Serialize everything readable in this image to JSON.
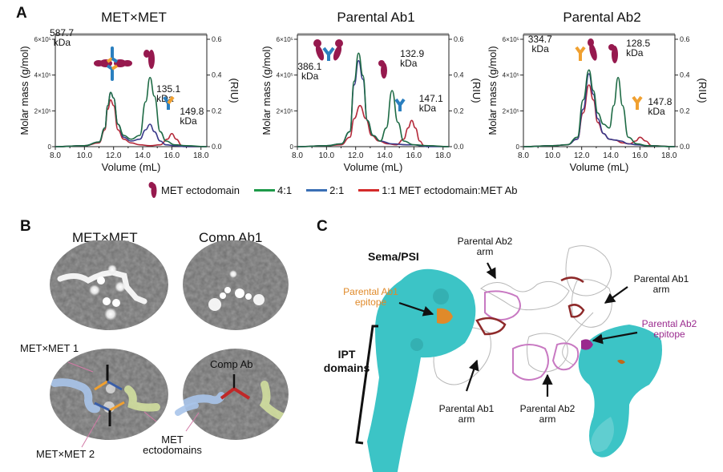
{
  "figure": {
    "panel_a": {
      "letter": "A"
    },
    "panel_b": {
      "letter": "B",
      "titles": [
        "MET×MET",
        "Comp Ab1"
      ],
      "annotations": {
        "metxmet1": "MET×MET 1",
        "metxmet2": "MET×MET 2",
        "met_ectodomains_line1": "MET",
        "met_ectodomains_line2": "ectodomains",
        "comp_ab": "Comp Ab"
      }
    },
    "panel_c": {
      "letter": "C",
      "sema_psi": "Sema/PSI",
      "ipt_line1": "IPT",
      "ipt_line2": "domains",
      "ab1_epitope_line1": "Parental Ab1",
      "ab1_epitope_line2": "epitope",
      "ab2_epitope_line1": "Parental Ab2",
      "ab2_epitope_line2": "epitope",
      "ab2_arm_top_line1": "Parental Ab2",
      "ab2_arm_top_line2": "arm",
      "ab1_arm_right_line1": "Parental Ab1",
      "ab1_arm_right_line2": "arm",
      "ab1_arm_bottom_line1": "Parental Ab1",
      "ab1_arm_bottom_line2": "arm",
      "ab2_arm_bottom_line1": "Parental Ab2",
      "ab2_arm_bottom_line2": "arm",
      "colors": {
        "met_surface": "#3cc4c6",
        "ab1_epitope": "#e08a2a",
        "ab2_epitope": "#9a2a8e",
        "ab1_arm": "#8e2a2a",
        "ab2_arm": "#c879c2"
      }
    },
    "legend": {
      "met_label": "MET ectodomain",
      "items": [
        {
          "label": "4:1",
          "color": "#1e9a4a"
        },
        {
          "label": "2:1",
          "color": "#3a6fb5"
        },
        {
          "label": "1:1 MET ectodomain:MET Ab",
          "color": "#d42a2a"
        }
      ]
    }
  },
  "chart_data": [
    {
      "type": "line",
      "title": "MET×MET",
      "xlabel": "Volume (mL)",
      "ylabel": "Molar mass (g/mol)",
      "ylabel_right": "(RIU)",
      "xlim": [
        8.0,
        18.4
      ],
      "ylim": [
        0,
        600000
      ],
      "ylim_right": [
        0,
        0.6
      ],
      "xticks": [
        "8.0",
        "10.0",
        "12.0",
        "14.0",
        "16.0",
        "18.0"
      ],
      "yticks_left": [
        "0",
        "2×10⁵",
        "4×10⁵",
        "6×10⁵"
      ],
      "yticks_right": [
        "0.0",
        "0.2",
        "0.4",
        "0.6"
      ],
      "annotations": [
        {
          "text1": "587.7",
          "text2": "kDa",
          "x": 11.8
        },
        {
          "text1": "135.1",
          "text2": "kDa",
          "x": 14.5
        },
        {
          "text1": "149.8",
          "text2": "kDa",
          "x": 16.0
        }
      ],
      "series": [
        {
          "name": "4:1",
          "color": "#1e6b45",
          "x": [
            8.0,
            10.0,
            11.0,
            11.4,
            11.6,
            11.8,
            12.0,
            12.3,
            12.7,
            13.2,
            13.8,
            14.2,
            14.5,
            14.8,
            15.2,
            15.6,
            16.2,
            17.0,
            18.4
          ],
          "y": [
            0.0,
            0.005,
            0.025,
            0.1,
            0.22,
            0.29,
            0.26,
            0.12,
            0.06,
            0.04,
            0.06,
            0.24,
            0.37,
            0.27,
            0.08,
            0.03,
            0.01,
            0.005,
            0.0
          ]
        },
        {
          "name": "2:1",
          "color": "#3a3a8a",
          "x": [
            8.0,
            10.0,
            11.0,
            11.4,
            11.6,
            11.8,
            12.0,
            12.3,
            12.7,
            13.2,
            13.8,
            14.2,
            14.5,
            14.8,
            15.2,
            15.6,
            16.2,
            17.0,
            18.4
          ],
          "y": [
            0.0,
            0.005,
            0.025,
            0.1,
            0.22,
            0.29,
            0.26,
            0.12,
            0.05,
            0.03,
            0.04,
            0.09,
            0.12,
            0.08,
            0.03,
            0.01,
            0.005,
            0.0,
            0.0
          ]
        },
        {
          "name": "1:1",
          "color": "#b42a3a",
          "x": [
            8.0,
            10.0,
            11.0,
            11.4,
            11.6,
            11.8,
            12.0,
            12.3,
            12.7,
            13.2,
            13.8,
            14.5,
            15.2,
            15.7,
            16.0,
            16.3,
            16.7,
            17.0,
            18.4
          ],
          "y": [
            0.0,
            0.005,
            0.02,
            0.09,
            0.2,
            0.25,
            0.22,
            0.09,
            0.04,
            0.02,
            0.01,
            0.005,
            0.01,
            0.04,
            0.07,
            0.04,
            0.005,
            0.0,
            0.0
          ]
        }
      ]
    },
    {
      "type": "line",
      "title": "Parental Ab1",
      "xlabel": "Volume (mL)",
      "ylabel": "Molar mass (g/mol)",
      "ylabel_right": "(RIU)",
      "xlim": [
        8.0,
        18.4
      ],
      "ylim": [
        0,
        600000
      ],
      "ylim_right": [
        0,
        0.6
      ],
      "xticks": [
        "8.0",
        "10.0",
        "12.0",
        "14.0",
        "16.0",
        "18.0"
      ],
      "yticks_left": [
        "0",
        "2×10⁵",
        "4×10⁵",
        "6×10⁵"
      ],
      "yticks_right": [
        "0.0",
        "0.2",
        "0.4",
        "0.6"
      ],
      "annotations": [
        {
          "text1": "386.1",
          "text2": "kDa",
          "x": 12.2
        },
        {
          "text1": "132.9",
          "text2": "kDa",
          "x": 14.5
        },
        {
          "text1": "147.1",
          "text2": "kDa",
          "x": 15.8
        }
      ],
      "series": [
        {
          "name": "4:1",
          "color": "#1e6b45",
          "x": [
            8.0,
            10.0,
            11.0,
            11.6,
            11.9,
            12.2,
            12.5,
            12.8,
            13.2,
            13.7,
            14.1,
            14.5,
            14.9,
            15.3,
            16.0,
            17.0,
            18.4
          ],
          "y": [
            0.0,
            0.005,
            0.015,
            0.08,
            0.35,
            0.5,
            0.38,
            0.14,
            0.06,
            0.03,
            0.1,
            0.3,
            0.13,
            0.03,
            0.01,
            0.005,
            0.0
          ]
        },
        {
          "name": "2:1",
          "color": "#3a3a8a",
          "x": [
            8.0,
            10.0,
            11.0,
            11.6,
            11.9,
            12.2,
            12.5,
            12.8,
            13.2,
            13.7,
            14.5,
            15.5,
            16.0,
            16.5,
            17.0,
            18.4
          ],
          "y": [
            0.0,
            0.005,
            0.015,
            0.08,
            0.33,
            0.46,
            0.36,
            0.14,
            0.06,
            0.03,
            0.015,
            0.01,
            0.01,
            0.005,
            0.0,
            0.0
          ]
        },
        {
          "name": "1:1",
          "color": "#b42a3a",
          "x": [
            8.0,
            10.0,
            11.0,
            11.6,
            11.9,
            12.3,
            12.7,
            13.1,
            13.6,
            14.2,
            14.8,
            15.3,
            15.6,
            15.85,
            16.1,
            16.4,
            16.7,
            18.4
          ],
          "y": [
            0.0,
            0.005,
            0.01,
            0.05,
            0.15,
            0.22,
            0.15,
            0.06,
            0.03,
            0.015,
            0.01,
            0.04,
            0.1,
            0.14,
            0.1,
            0.03,
            0.005,
            0.0
          ]
        }
      ]
    },
    {
      "type": "line",
      "title": "Parental Ab2",
      "xlabel": "Volume (mL)",
      "ylabel": "Molar mass (g/mol)",
      "ylabel_right": "(RIU)",
      "xlim": [
        8.0,
        18.4
      ],
      "ylim": [
        0,
        600000
      ],
      "ylim_right": [
        0,
        0.6
      ],
      "xticks": [
        "8.0",
        "10.0",
        "12.0",
        "14.0",
        "16.0",
        "18.0"
      ],
      "yticks_left": [
        "0",
        "2×10⁵",
        "4×10⁵",
        "6×10⁵"
      ],
      "yticks_right": [
        "0.0",
        "0.2",
        "0.4",
        "0.6"
      ],
      "annotations": [
        {
          "text1": "334.7",
          "text2": "kDa",
          "x": 12.5
        },
        {
          "text1": "128.5",
          "text2": "kDa",
          "x": 14.5
        },
        {
          "text1": "147.8",
          "text2": "kDa",
          "x": 16.0
        }
      ],
      "series": [
        {
          "name": "4:1",
          "color": "#1e6b45",
          "x": [
            8.0,
            10.0,
            11.0,
            11.7,
            12.1,
            12.5,
            12.8,
            13.1,
            13.5,
            13.9,
            14.2,
            14.5,
            14.8,
            15.2,
            15.8,
            16.5,
            18.4
          ],
          "y": [
            0.0,
            0.005,
            0.01,
            0.05,
            0.25,
            0.41,
            0.3,
            0.18,
            0.12,
            0.1,
            0.22,
            0.37,
            0.22,
            0.05,
            0.015,
            0.005,
            0.0
          ]
        },
        {
          "name": "2:1",
          "color": "#3a3a8a",
          "x": [
            8.0,
            10.0,
            11.0,
            11.7,
            12.1,
            12.5,
            12.8,
            13.1,
            13.5,
            13.9,
            14.3,
            14.7,
            15.2,
            15.8,
            16.5,
            18.4
          ],
          "y": [
            0.0,
            0.005,
            0.01,
            0.04,
            0.2,
            0.39,
            0.28,
            0.15,
            0.07,
            0.04,
            0.035,
            0.03,
            0.015,
            0.01,
            0.005,
            0.0
          ]
        },
        {
          "name": "1:1",
          "color": "#b42a3a",
          "x": [
            8.0,
            10.0,
            11.0,
            11.7,
            12.1,
            12.5,
            12.8,
            13.1,
            13.5,
            13.9,
            14.3,
            14.8,
            15.3,
            15.7,
            16.0,
            16.4,
            16.8,
            18.4
          ],
          "y": [
            0.0,
            0.005,
            0.01,
            0.04,
            0.18,
            0.33,
            0.25,
            0.13,
            0.07,
            0.04,
            0.035,
            0.02,
            0.015,
            0.03,
            0.05,
            0.03,
            0.005,
            0.0
          ]
        }
      ]
    }
  ]
}
